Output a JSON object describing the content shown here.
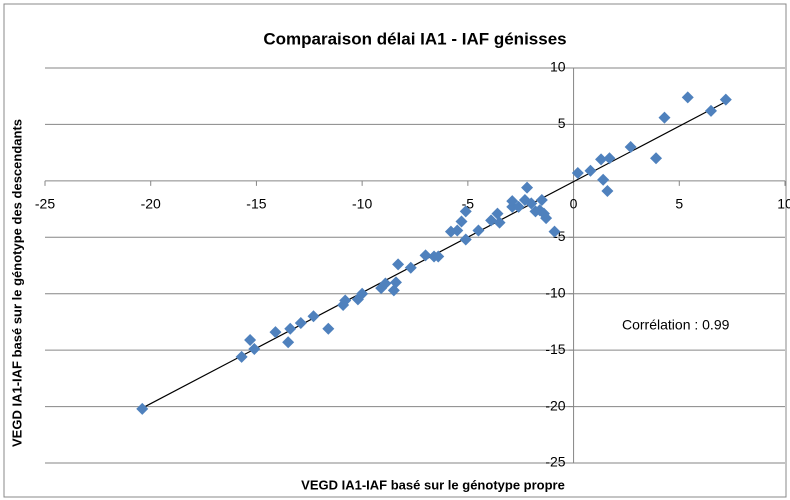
{
  "chart_data": {
    "type": "scatter",
    "title": "Comparaison délai IA1 - IAF génisses",
    "x_label": "VEGD IA1-IAF basé sur le génotype propre",
    "y_label": "VEGD IA1-IAF basé sur le génotype des descendants",
    "annotation": "Corrélation :  0.99",
    "color": "#4f81bd",
    "x": [
      -20.4,
      -15.7,
      -15.3,
      -15.1,
      -14.1,
      -13.5,
      -13.4,
      -12.9,
      -12.3,
      -11.6,
      -10.9,
      -10.8,
      -10.2,
      -10.0,
      -9.1,
      -8.9,
      -8.5,
      -8.4,
      -8.3,
      -7.7,
      -7.0,
      -6.6,
      -6.4,
      -5.8,
      -5.5,
      -5.3,
      -5.1,
      -5.1,
      -4.5,
      -3.9,
      -3.6,
      -3.5,
      -2.9,
      -2.9,
      -2.6,
      -2.3,
      -2.2,
      -2.0,
      -1.8,
      -1.6,
      -1.5,
      -1.4,
      -1.3,
      -0.9,
      0.2,
      0.8,
      1.3,
      1.4,
      1.6,
      1.7,
      2.7,
      3.9,
      4.3,
      5.4,
      6.5,
      7.2
    ],
    "values": [
      -20.2,
      -15.6,
      -14.1,
      -14.9,
      -13.4,
      -14.3,
      -13.1,
      -12.6,
      -12.0,
      -13.1,
      -11.0,
      -10.6,
      -10.5,
      -10.0,
      -9.5,
      -9.1,
      -9.7,
      -9.0,
      -7.4,
      -7.7,
      -6.6,
      -6.7,
      -6.7,
      -4.5,
      -4.4,
      -3.6,
      -2.7,
      -5.2,
      -4.4,
      -3.5,
      -2.9,
      -3.7,
      -2.3,
      -1.8,
      -2.3,
      -1.7,
      -0.6,
      -2.0,
      -2.7,
      -2.6,
      -1.7,
      -2.9,
      -3.3,
      -4.5,
      0.7,
      0.9,
      1.9,
      0.1,
      -0.9,
      2.0,
      3.0,
      2.0,
      5.6,
      7.4,
      6.2,
      7.2
    ],
    "xlim": [
      -25,
      10
    ],
    "ylim": [
      -25,
      10
    ],
    "xticks": [
      -25,
      -20,
      -15,
      -10,
      -5,
      0,
      5,
      10
    ],
    "yticks": [
      -25,
      -20,
      -15,
      -10,
      -5,
      5,
      10
    ],
    "grid": true,
    "trendline": true
  }
}
